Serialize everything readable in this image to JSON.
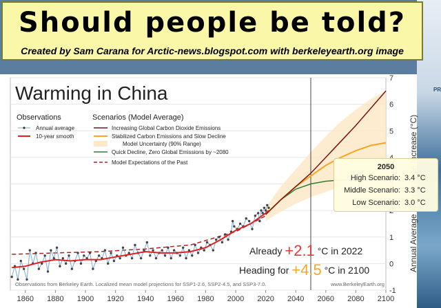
{
  "banner": {
    "title": "Should people be told?",
    "subtitle": "Created by Sam Carana for Arctic-news.blogspot.com with berkeleyearth.org image"
  },
  "side_text": "PR",
  "chart_data": {
    "type": "line",
    "title": "Warming in China",
    "ylabel": "Annual Average Temperature Increase (°C)",
    "xlim": [
      1850,
      2100
    ],
    "ylim": [
      -1,
      7
    ],
    "x_ticks": [
      1860,
      1880,
      1900,
      1920,
      1940,
      1960,
      1980,
      2000,
      2020,
      2040,
      2060,
      2080,
      2100
    ],
    "y_ticks": [
      -1,
      0,
      1,
      2,
      3,
      4,
      5,
      6,
      7
    ],
    "colors": {
      "observations": "#444444",
      "annual_line": "#7aa9d6",
      "smooth": "#e02020",
      "high": "#7a1010",
      "middle": "#f5a623",
      "low": "#2e7d32",
      "uncertainty": "#fde9c7",
      "past_model": "#b21e1e"
    },
    "legend": {
      "observations_heading": "Observations",
      "annual_average": "Annual average",
      "smooth_10yr": "10-year smooth",
      "scenarios_heading": "Scenarios (Model Average)",
      "high_label": "Increasing Global Carbon Dioxide Emissions",
      "middle_label_1": "Stabilized Carbon Emissions and Slow Decline",
      "middle_label_2": "Model Uncertainty (90% Range)",
      "low_label": "Quick Decline, Zero Global Emissions by ~2080",
      "past_label": "Model Expectations of the Past"
    },
    "observations": {
      "x": [
        1851,
        1853,
        1855,
        1857,
        1859,
        1861,
        1863,
        1865,
        1867,
        1869,
        1871,
        1873,
        1875,
        1877,
        1879,
        1881,
        1883,
        1885,
        1887,
        1889,
        1891,
        1893,
        1895,
        1897,
        1899,
        1901,
        1903,
        1905,
        1907,
        1909,
        1911,
        1913,
        1915,
        1917,
        1919,
        1921,
        1923,
        1925,
        1927,
        1929,
        1931,
        1933,
        1935,
        1937,
        1939,
        1941,
        1943,
        1945,
        1947,
        1949,
        1951,
        1953,
        1955,
        1957,
        1959,
        1961,
        1963,
        1965,
        1967,
        1969,
        1971,
        1973,
        1975,
        1977,
        1979,
        1981,
        1983,
        1985,
        1987,
        1989,
        1991,
        1993,
        1995,
        1997,
        1998,
        1999,
        2001,
        2003,
        2005,
        2007,
        2009,
        2011,
        2013,
        2015,
        2016,
        2017,
        2018,
        2019,
        2020,
        2021,
        2022
      ],
      "y": [
        -0.5,
        -0.1,
        -0.6,
        0.1,
        -0.2,
        -0.6,
        0.5,
        0.0,
        0.4,
        -0.2,
        0.0,
        0.3,
        -0.3,
        0.5,
        0.2,
        0.6,
        -0.1,
        0.2,
        0.0,
        0.3,
        -0.2,
        0.1,
        0.4,
        0.0,
        0.3,
        0.2,
        0.4,
        -0.2,
        0.1,
        0.3,
        0.2,
        0.5,
        0.0,
        0.4,
        0.1,
        0.3,
        0.2,
        0.6,
        0.3,
        0.4,
        0.2,
        0.7,
        0.4,
        0.2,
        0.5,
        0.8,
        0.3,
        0.5,
        0.2,
        0.4,
        0.5,
        0.3,
        0.6,
        0.2,
        0.5,
        0.4,
        0.3,
        0.6,
        0.2,
        0.5,
        0.3,
        0.7,
        0.4,
        0.6,
        0.5,
        0.8,
        0.7,
        0.5,
        0.9,
        1.0,
        0.8,
        1.1,
        0.9,
        1.2,
        1.6,
        1.4,
        1.3,
        1.5,
        1.4,
        1.7,
        1.6,
        1.3,
        1.8,
        1.9,
        1.6,
        2.0,
        1.9,
        2.1,
        2.0,
        2.2,
        2.1
      ]
    },
    "smooth": {
      "x": [
        1851,
        1860,
        1870,
        1880,
        1890,
        1900,
        1910,
        1920,
        1930,
        1940,
        1950,
        1960,
        1970,
        1980,
        1990,
        2000,
        2010,
        2020,
        2022
      ],
      "y": [
        -0.15,
        -0.1,
        0.05,
        0.15,
        0.1,
        0.15,
        0.15,
        0.25,
        0.35,
        0.45,
        0.4,
        0.4,
        0.45,
        0.6,
        0.9,
        1.25,
        1.5,
        1.9,
        2.0
      ]
    },
    "past_model": {
      "x": [
        1851,
        1880,
        1910,
        1940,
        1970,
        2000,
        2020
      ],
      "y": [
        0.35,
        0.4,
        0.45,
        0.55,
        0.7,
        1.2,
        1.8
      ]
    },
    "scenarios": {
      "x": [
        2020,
        2030,
        2040,
        2050,
        2060,
        2070,
        2080,
        2090,
        2100
      ],
      "high": [
        1.85,
        2.4,
        2.9,
        3.4,
        4.0,
        4.6,
        5.2,
        5.85,
        6.5
      ],
      "middle": [
        1.85,
        2.4,
        2.9,
        3.3,
        3.7,
        4.0,
        4.25,
        4.45,
        4.55
      ],
      "low": [
        1.85,
        2.4,
        2.8,
        3.0,
        3.1,
        3.15,
        3.15,
        3.15,
        3.15
      ],
      "uncertainty_low": [
        1.6,
        1.95,
        2.25,
        2.5,
        2.7,
        2.9,
        3.05,
        3.15,
        3.2
      ],
      "uncertainty_high": [
        2.1,
        2.9,
        3.55,
        4.2,
        4.8,
        5.35,
        5.8,
        6.2,
        6.5
      ]
    },
    "vertical_marker_x": 2050,
    "tooltip": {
      "title": "2050",
      "rows": [
        {
          "label": "High Scenario:",
          "value": "3.4 °C"
        },
        {
          "label": "Middle Scenario:",
          "value": "3.3 °C"
        },
        {
          "label": "Low Scenario:",
          "value": "3.0 °C"
        }
      ]
    },
    "annotations": {
      "already_prefix": "Already",
      "already_value": "+2.1",
      "already_suffix": "°C in 2022",
      "heading_prefix": "Heading for",
      "heading_value": "+4.5",
      "heading_suffix": "°C in 2100",
      "already_color": "#e53935",
      "heading_color": "#f5a623",
      "footer_left": "Observations from Berkeley Earth. Localized mean model projections for SSP1-2.6, SSP2-4.5, and SSP3-7.0.",
      "footer_right": "www.BerkeleyEarth.org"
    }
  }
}
